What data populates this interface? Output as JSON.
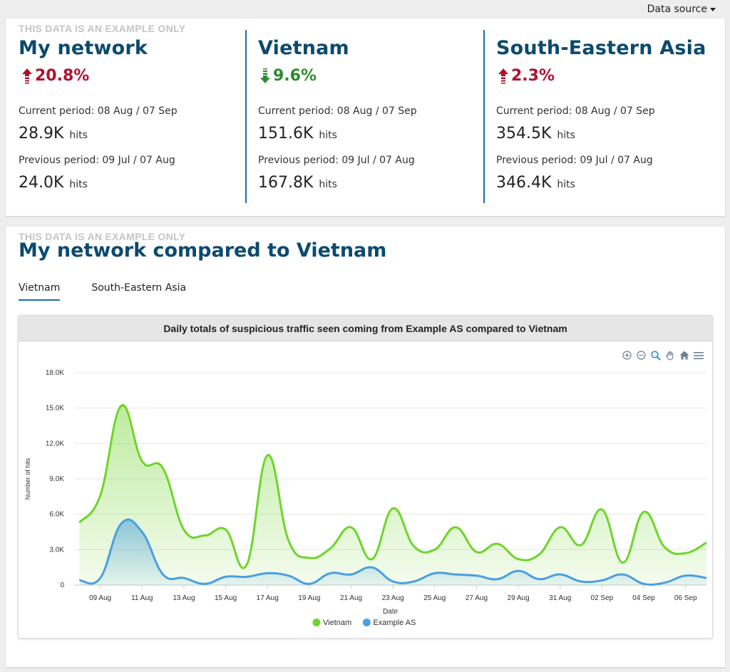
{
  "datasource": {
    "label": "Data source"
  },
  "example_note": "THIS DATA IS AN EXAMPLE ONLY",
  "summary": [
    {
      "title": "My network",
      "change": "20.8%",
      "direction": "up",
      "current_label": "Current period: 08 Aug / 07 Sep",
      "current_value": "28.9K",
      "previous_label": "Previous period: 09 Jul / 07 Aug",
      "previous_value": "24.0K",
      "unit": "hits"
    },
    {
      "title": "Vietnam",
      "change": "9.6%",
      "direction": "down",
      "current_label": "Current period: 08 Aug / 07 Sep",
      "current_value": "151.6K",
      "previous_label": "Previous period: 09 Jul / 07 Aug",
      "previous_value": "167.8K",
      "unit": "hits"
    },
    {
      "title": "South-Eastern Asia",
      "change": "2.3%",
      "direction": "up",
      "current_label": "Current period: 08 Aug / 07 Sep",
      "current_value": "354.5K",
      "previous_label": "Previous period: 09 Jul / 07 Aug",
      "previous_value": "346.4K",
      "unit": "hits"
    }
  ],
  "colors": {
    "title": "#0c4a6e",
    "up": "#b0102e",
    "down": "#2e8b2e",
    "vietnam": "#6fd52a",
    "example_as": "#4a9fe0",
    "accent": "#1f6fa5"
  },
  "section": {
    "title": "My network compared to Vietnam",
    "tabs": [
      {
        "label": "Vietnam",
        "active": true
      },
      {
        "label": "South-Eastern Asia",
        "active": false
      }
    ]
  },
  "toolbar": {
    "icons": [
      "zoom-in-icon",
      "zoom-out-icon",
      "zoom-selection-icon",
      "pan-hand-icon",
      "home-reset-icon",
      "menu-icon"
    ]
  },
  "chart_data": {
    "type": "area",
    "title": "Daily totals of suspicious traffic seen coming from Example AS compared to Vietnam",
    "xlabel": "Date",
    "ylabel": "Number of hits",
    "ylim": [
      0,
      18000
    ],
    "yticks": [
      0,
      3000,
      6000,
      9000,
      12000,
      15000,
      18000
    ],
    "ytick_labels": [
      "0",
      "3.0K",
      "6.0K",
      "9.0K",
      "12.0K",
      "15.0K",
      "18.0K"
    ],
    "xtick_labels": [
      "09 Aug",
      "11 Aug",
      "13 Aug",
      "15 Aug",
      "17 Aug",
      "19 Aug",
      "21 Aug",
      "23 Aug",
      "25 Aug",
      "27 Aug",
      "29 Aug",
      "31 Aug",
      "02 Sep",
      "04 Sep",
      "06 Sep"
    ],
    "x": [
      "08 Aug",
      "09 Aug",
      "10 Aug",
      "11 Aug",
      "12 Aug",
      "13 Aug",
      "14 Aug",
      "15 Aug",
      "16 Aug",
      "17 Aug",
      "18 Aug",
      "19 Aug",
      "20 Aug",
      "21 Aug",
      "22 Aug",
      "23 Aug",
      "24 Aug",
      "25 Aug",
      "26 Aug",
      "27 Aug",
      "28 Aug",
      "29 Aug",
      "30 Aug",
      "31 Aug",
      "01 Sep",
      "02 Sep",
      "03 Sep",
      "04 Sep",
      "05 Sep",
      "06 Sep",
      "07 Sep"
    ],
    "grid": true,
    "legend": "bottom-center",
    "series": [
      {
        "name": "Vietnam",
        "values": [
          5300,
          7600,
          15200,
          10500,
          9900,
          4700,
          4200,
          4700,
          1700,
          11000,
          3800,
          2300,
          3100,
          4900,
          2200,
          6500,
          3300,
          3000,
          4900,
          2800,
          3500,
          2200,
          2600,
          4900,
          3400,
          6400,
          1900,
          6200,
          3200,
          2700,
          3600
        ]
      },
      {
        "name": "Example AS",
        "values": [
          400,
          600,
          5200,
          4500,
          900,
          600,
          100,
          700,
          700,
          1000,
          800,
          100,
          1000,
          900,
          1500,
          300,
          300,
          1000,
          900,
          800,
          500,
          1200,
          500,
          900,
          300,
          400,
          900,
          100,
          200,
          800,
          600
        ]
      }
    ]
  }
}
